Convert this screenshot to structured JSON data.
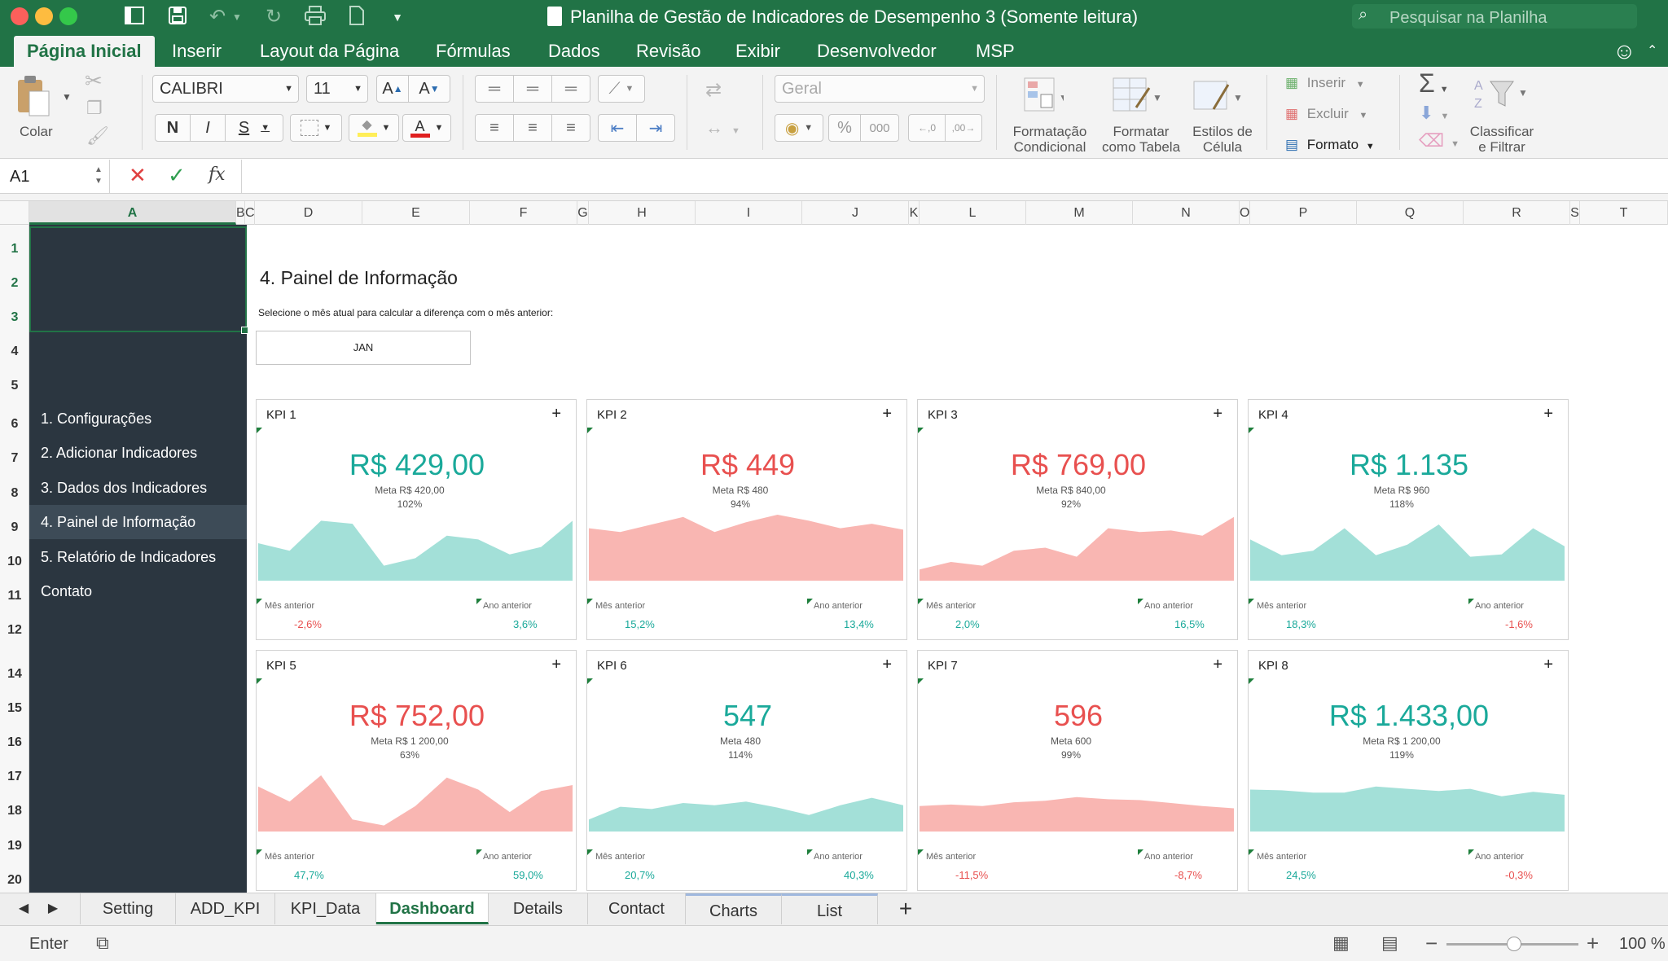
{
  "window": {
    "title": "Planilha de Gestão de Indicadores de Desempenho 3  (Somente leitura)",
    "search_placeholder": "Pesquisar na Planilha"
  },
  "ribbon_tabs": [
    "Página Inicial",
    "Inserir",
    "Layout da Página",
    "Fórmulas",
    "Dados",
    "Revisão",
    "Exibir",
    "Desenvolvedor",
    "MSP"
  ],
  "ribbon": {
    "paste_label": "Colar",
    "font_name": "CALIBRI",
    "font_size": "11",
    "bold_label": "N",
    "italic_label": "I",
    "underline_label": "S",
    "number_format": "Geral",
    "cond_format_label": "Formatação Condicional",
    "format_table_label": "Formatar como Tabela",
    "cell_styles_label": "Estilos de Célula",
    "insert_label": "Inserir",
    "delete_label": "Excluir",
    "format_label": "Formato",
    "sort_filter_label": "Classificar e Filtrar",
    "percent_label": "%",
    "thousands_label": "000"
  },
  "formula_bar": {
    "cell_ref": "A1",
    "formula": ""
  },
  "columns": [
    "A",
    "B",
    "C",
    "D",
    "E",
    "F",
    "G",
    "H",
    "I",
    "J",
    "K",
    "L",
    "M",
    "N",
    "O",
    "P",
    "Q",
    "R",
    "S",
    "T"
  ],
  "rows": [
    "1",
    "2",
    "3",
    "4",
    "5",
    "6",
    "7",
    "8",
    "9",
    "10",
    "11",
    "12",
    "14",
    "15",
    "16",
    "17",
    "18",
    "19",
    "20"
  ],
  "sidebar_nav": [
    "1. Configurações",
    "2. Adicionar Indicadores",
    "3. Dados dos Indicadores",
    "4. Painel de Informação",
    "5. Relatório de Indicadores",
    "Contato"
  ],
  "panel": {
    "title": "4. Painel de Informação",
    "subtitle": "Selecione o mês atual para calcular a diferença com o mês anterior:",
    "selected_month": "JAN"
  },
  "colors": {
    "positive": "#1aa99a",
    "negative": "#e8504f",
    "positive_fill": "#a3e0d8",
    "negative_fill": "#f9b6b2",
    "excel_green": "#217346"
  },
  "kpi_labels": {
    "prev_month": "Mês anterior",
    "prev_year": "Ano anterior",
    "plus": "+"
  },
  "kpis": [
    {
      "name": "KPI 1",
      "value": "R$ 429,00",
      "meta": "Meta R$ 420,00",
      "pct": "102%",
      "status": "positive",
      "prev_month": "-2,6%",
      "prev_month_status": "negative",
      "prev_year": "3,6%",
      "prev_year_status": "positive",
      "trend": [
        5,
        4,
        8,
        7.6,
        2,
        3,
        6,
        5.5,
        3.5,
        4.5,
        8
      ]
    },
    {
      "name": "KPI 2",
      "value": "R$ 449",
      "meta": "Meta R$ 480",
      "pct": "94%",
      "status": "negative",
      "prev_month": "15,2%",
      "prev_month_status": "positive",
      "prev_year": "13,4%",
      "prev_year_status": "positive",
      "trend": [
        7,
        6.5,
        7.5,
        8.5,
        6.5,
        7.8,
        8.8,
        8,
        7,
        7.6,
        6.8
      ]
    },
    {
      "name": "KPI 3",
      "value": "R$ 769,00",
      "meta": "Meta R$ 840,00",
      "pct": "92%",
      "status": "negative",
      "prev_month": "2,0%",
      "prev_month_status": "positive",
      "prev_year": "16,5%",
      "prev_year_status": "positive",
      "trend": [
        1.5,
        2.5,
        2,
        4,
        4.4,
        3.2,
        7,
        6.5,
        6.7,
        6,
        8.5
      ]
    },
    {
      "name": "KPI 4",
      "value": "R$ 1.135",
      "meta": "Meta R$ 960",
      "pct": "118%",
      "status": "positive",
      "prev_month": "18,3%",
      "prev_month_status": "positive",
      "prev_year": "-1,6%",
      "prev_year_status": "negative",
      "trend": [
        5.5,
        3.4,
        4,
        7,
        3.4,
        4.8,
        7.5,
        3.2,
        3.5,
        7,
        4.6
      ]
    },
    {
      "name": "KPI 5",
      "value": "R$ 752,00",
      "meta": "Meta R$ 1 200,00",
      "pct": "63%",
      "status": "negative",
      "prev_month": "47,7%",
      "prev_month_status": "positive",
      "prev_year": "59,0%",
      "prev_year_status": "positive",
      "trend": [
        6,
        4,
        7.5,
        1.6,
        0.8,
        3.4,
        7.2,
        5.6,
        2.6,
        5.4,
        6.2
      ]
    },
    {
      "name": "KPI 6",
      "value": "547",
      "meta": "Meta 480",
      "pct": "114%",
      "status": "positive",
      "prev_month": "20,7%",
      "prev_month_status": "positive",
      "prev_year": "40,3%",
      "prev_year_status": "positive",
      "trend": [
        1.6,
        3.3,
        3,
        3.8,
        3.5,
        4,
        3.2,
        2.2,
        3.5,
        4.5,
        3.5
      ]
    },
    {
      "name": "KPI 7",
      "value": "596",
      "meta": "Meta 600",
      "pct": "99%",
      "status": "negative",
      "prev_month": "-11,5%",
      "prev_month_status": "negative",
      "prev_year": "-8,7%",
      "prev_year_status": "negative",
      "trend": [
        3.4,
        3.6,
        3.4,
        3.9,
        4.1,
        4.6,
        4.3,
        4.2,
        3.8,
        3.4,
        3.1
      ]
    },
    {
      "name": "KPI 8",
      "value": "R$ 1.433,00",
      "meta": "Meta R$ 1 200,00",
      "pct": "119%",
      "status": "positive",
      "prev_month": "24,5%",
      "prev_month_status": "positive",
      "prev_year": "-0,3%",
      "prev_year_status": "negative",
      "trend": [
        5.6,
        5.5,
        5.2,
        5.2,
        6,
        5.7,
        5.4,
        5.7,
        4.7,
        5.3,
        4.9
      ]
    }
  ],
  "sheet_tabs": [
    "Setting",
    "ADD_KPI",
    "KPI_Data",
    "Dashboard",
    "Details",
    "Contact",
    "Charts",
    "List"
  ],
  "active_sheet": "Dashboard",
  "status": {
    "mode": "Enter",
    "zoom": "100 %"
  }
}
